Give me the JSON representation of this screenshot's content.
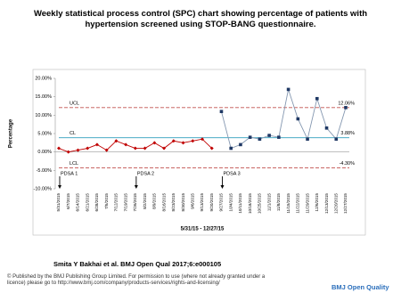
{
  "chart_data": {
    "type": "line",
    "title": "Weekly statistical process control (SPC) chart showing percentage of patients with hypertension screened using STOP-BANG questionnaire.",
    "y_label": "Percentage",
    "x_label": "5/31/15 - 12/27/15",
    "categories": [
      "5/31/2015",
      "6/7/2015",
      "6/14/2015",
      "6/21/2015",
      "6/28/2015",
      "7/5/2015",
      "7/12/2015",
      "7/19/2015",
      "7/26/2015",
      "8/2/2015",
      "8/9/2015",
      "8/16/2015",
      "8/23/2015",
      "8/30/2015",
      "9/6/2015",
      "9/13/2015",
      "9/20/2015",
      "9/27/2015",
      "10/4/2015",
      "10/11/2015",
      "10/18/2015",
      "10/25/2015",
      "11/1/2015",
      "11/8/2015",
      "11/15/2015",
      "11/22/2015",
      "11/29/2015",
      "12/6/2015",
      "12/13/2015",
      "12/20/2015",
      "12/27/2015"
    ],
    "series": [
      {
        "color": "#c00000",
        "marker": "diamond",
        "values": [
          1,
          0,
          0.5,
          1,
          2,
          0.5,
          3,
          2,
          1,
          1,
          2.5,
          1,
          3,
          2.5,
          3,
          3.5,
          1,
          null,
          null,
          null,
          null,
          null,
          null,
          null,
          null,
          null,
          null,
          null,
          null,
          null,
          null
        ]
      },
      {
        "color": "#1f3864",
        "line_color": "#8497b0",
        "marker": "square",
        "values": [
          null,
          null,
          null,
          null,
          null,
          null,
          null,
          null,
          null,
          null,
          null,
          null,
          null,
          null,
          null,
          null,
          null,
          11,
          1,
          2,
          4,
          3.5,
          4.5,
          4,
          17,
          9,
          3.5,
          14.5,
          6.5,
          3.5,
          12.06
        ]
      }
    ],
    "control_lines": [
      {
        "name": "UCL",
        "value": 12.06,
        "value_label": "12.06%",
        "color": "#c0504d",
        "dashed": true
      },
      {
        "name": "CL",
        "value": 3.88,
        "value_label": "3.88%",
        "color": "#4bacc6",
        "dashed": false
      },
      {
        "name": "LCL",
        "value": -4.3,
        "value_label": "-4.30%",
        "color": "#c0504d",
        "dashed": true
      }
    ],
    "annotations": [
      {
        "label": "PDSA 1",
        "at": "5/31/2015"
      },
      {
        "label": "PDSA 2",
        "at": "7/26/2015"
      },
      {
        "label": "PDSA 3",
        "at": "9/27/2015"
      }
    ],
    "ylim": [
      -10,
      20
    ],
    "yticks": [
      {
        "value": -10,
        "label": "-10.00%"
      },
      {
        "value": -5,
        "label": "-5.00%"
      },
      {
        "value": 0,
        "label": "0.00%"
      },
      {
        "value": 5,
        "label": "5.00%"
      },
      {
        "value": 10,
        "label": "10.00%"
      },
      {
        "value": 15,
        "label": "15.00%"
      },
      {
        "value": 20,
        "label": "20.00%"
      }
    ],
    "grid": false
  },
  "citation": "Smita Y Bakhai et al. BMJ Open Qual 2017;6:e000105",
  "footer": {
    "copyright": "© Published by the BMJ Publishing Group Limited. For permission to use (where not already granted under a licence) please go to http://www.bmj.com/company/products-services/rights-and-licensing/",
    "brand": "BMJ Open Quality"
  }
}
